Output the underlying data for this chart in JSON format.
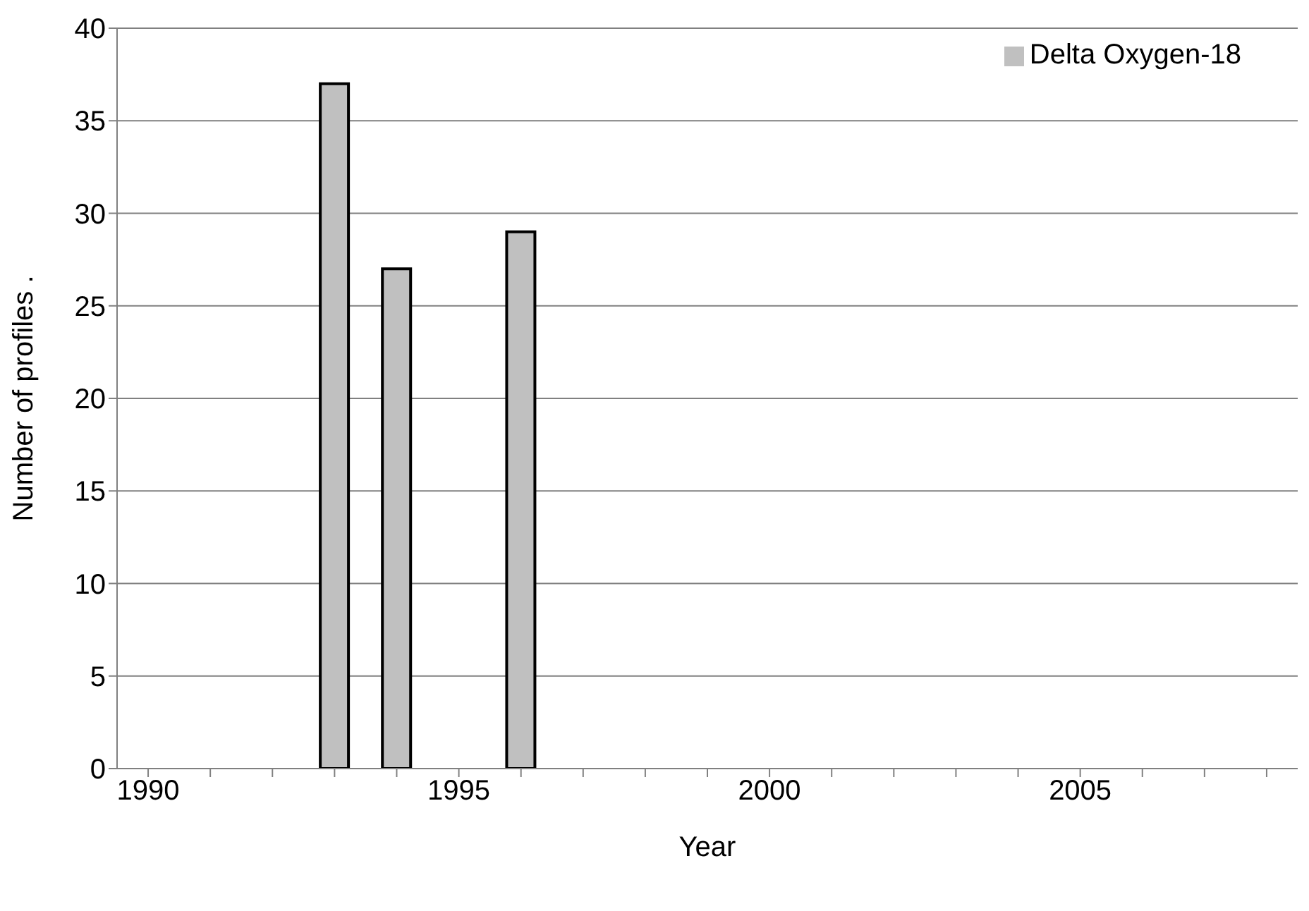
{
  "chart_data": {
    "type": "bar",
    "xlabel": "Year",
    "ylabel": "Number of profiles .",
    "categories": [
      "1990",
      null,
      null,
      null,
      null,
      "1995",
      null,
      null,
      null,
      null,
      "2000",
      null,
      null,
      null,
      null,
      "2005",
      null,
      null,
      null
    ],
    "series": [
      {
        "name": "Delta Oxygen-18",
        "color": "#c0c0c0",
        "values": [
          null,
          null,
          null,
          37,
          27,
          null,
          29,
          null,
          null,
          null,
          null,
          null,
          null,
          null,
          null,
          null,
          null,
          null,
          null
        ]
      }
    ],
    "ylim": [
      0,
      40
    ],
    "yticks": [
      0,
      5,
      10,
      15,
      20,
      25,
      30,
      35,
      40
    ],
    "grid": "y",
    "legend": "top right"
  }
}
